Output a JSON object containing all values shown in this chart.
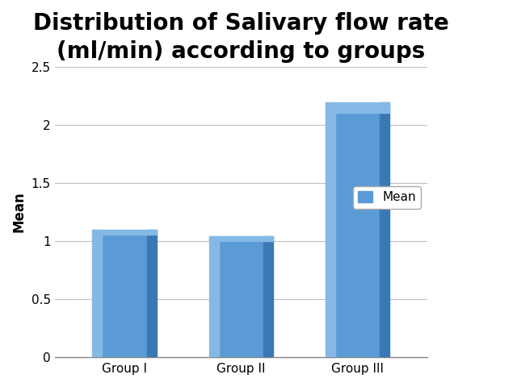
{
  "title": "Distribution of Salivary flow rate\n(ml/min) according to groups",
  "categories": [
    "Group I",
    "Group II",
    "Group III"
  ],
  "values": [
    1.1,
    1.04,
    2.19
  ],
  "bar_color_main": "#5B9BD5",
  "bar_color_light": "#85B9E5",
  "bar_color_dark": "#3A78B5",
  "ylabel": "Mean",
  "ylim": [
    0,
    2.5
  ],
  "yticks": [
    0,
    0.5,
    1.0,
    1.5,
    2.0,
    2.5
  ],
  "ytick_labels": [
    "0",
    "0.5",
    "1",
    "1.5",
    "2",
    "2.5"
  ],
  "legend_label": "Mean",
  "title_fontsize": 20,
  "axis_label_fontsize": 12,
  "tick_fontsize": 11,
  "background_color": "#FFFFFF",
  "grid_color": "#C0C0C0"
}
